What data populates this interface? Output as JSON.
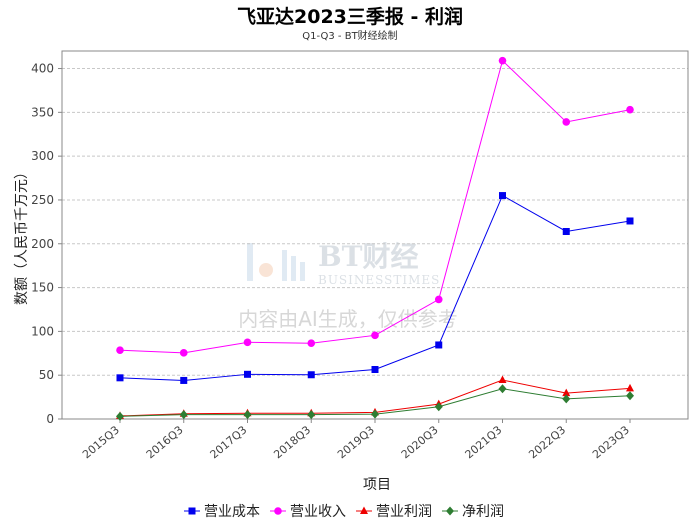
{
  "title": "飞亚达2023三季报 - 利润",
  "subtitle": "Q1-Q3 - BT财经绘制",
  "watermark": {
    "brand": "BT财经",
    "sub": "BUSINESSTIMES",
    "notice": "内容由AI生成，仅供参考"
  },
  "chart_data": {
    "type": "line",
    "title": "飞亚达2023三季报 - 利润",
    "subtitle": "Q1-Q3 - BT财经绘制",
    "xlabel": "项目",
    "ylabel": "数额（人民币千万元）",
    "categories": [
      "2015Q3",
      "2016Q3",
      "2017Q3",
      "2018Q3",
      "2019Q3",
      "2020Q3",
      "2021Q3",
      "2022Q3",
      "2023Q3"
    ],
    "ylim": [
      0,
      420
    ],
    "yticks": [
      0,
      50,
      100,
      150,
      200,
      250,
      300,
      350,
      400
    ],
    "grid": true,
    "legend_position": "bottom",
    "series": [
      {
        "name": "营业成本",
        "color": "#0000ee",
        "marker": "square",
        "values": [
          47,
          44,
          51,
          50.5,
          56.5,
          84.5,
          255,
          214,
          226
        ]
      },
      {
        "name": "营业收入",
        "color": "#ff00ff",
        "marker": "circle",
        "values": [
          78.5,
          75.5,
          87.5,
          86.5,
          95.5,
          136.5,
          409,
          339,
          353
        ]
      },
      {
        "name": "营业利润",
        "color": "#ee0000",
        "marker": "triangle",
        "values": [
          3.5,
          6,
          6.5,
          6.5,
          7.5,
          17,
          44.5,
          29.5,
          35
        ]
      },
      {
        "name": "净利润",
        "color": "#2e7d32",
        "marker": "diamond",
        "values": [
          3,
          5,
          5,
          5,
          5.5,
          14,
          34.5,
          23,
          26.5
        ]
      }
    ]
  }
}
